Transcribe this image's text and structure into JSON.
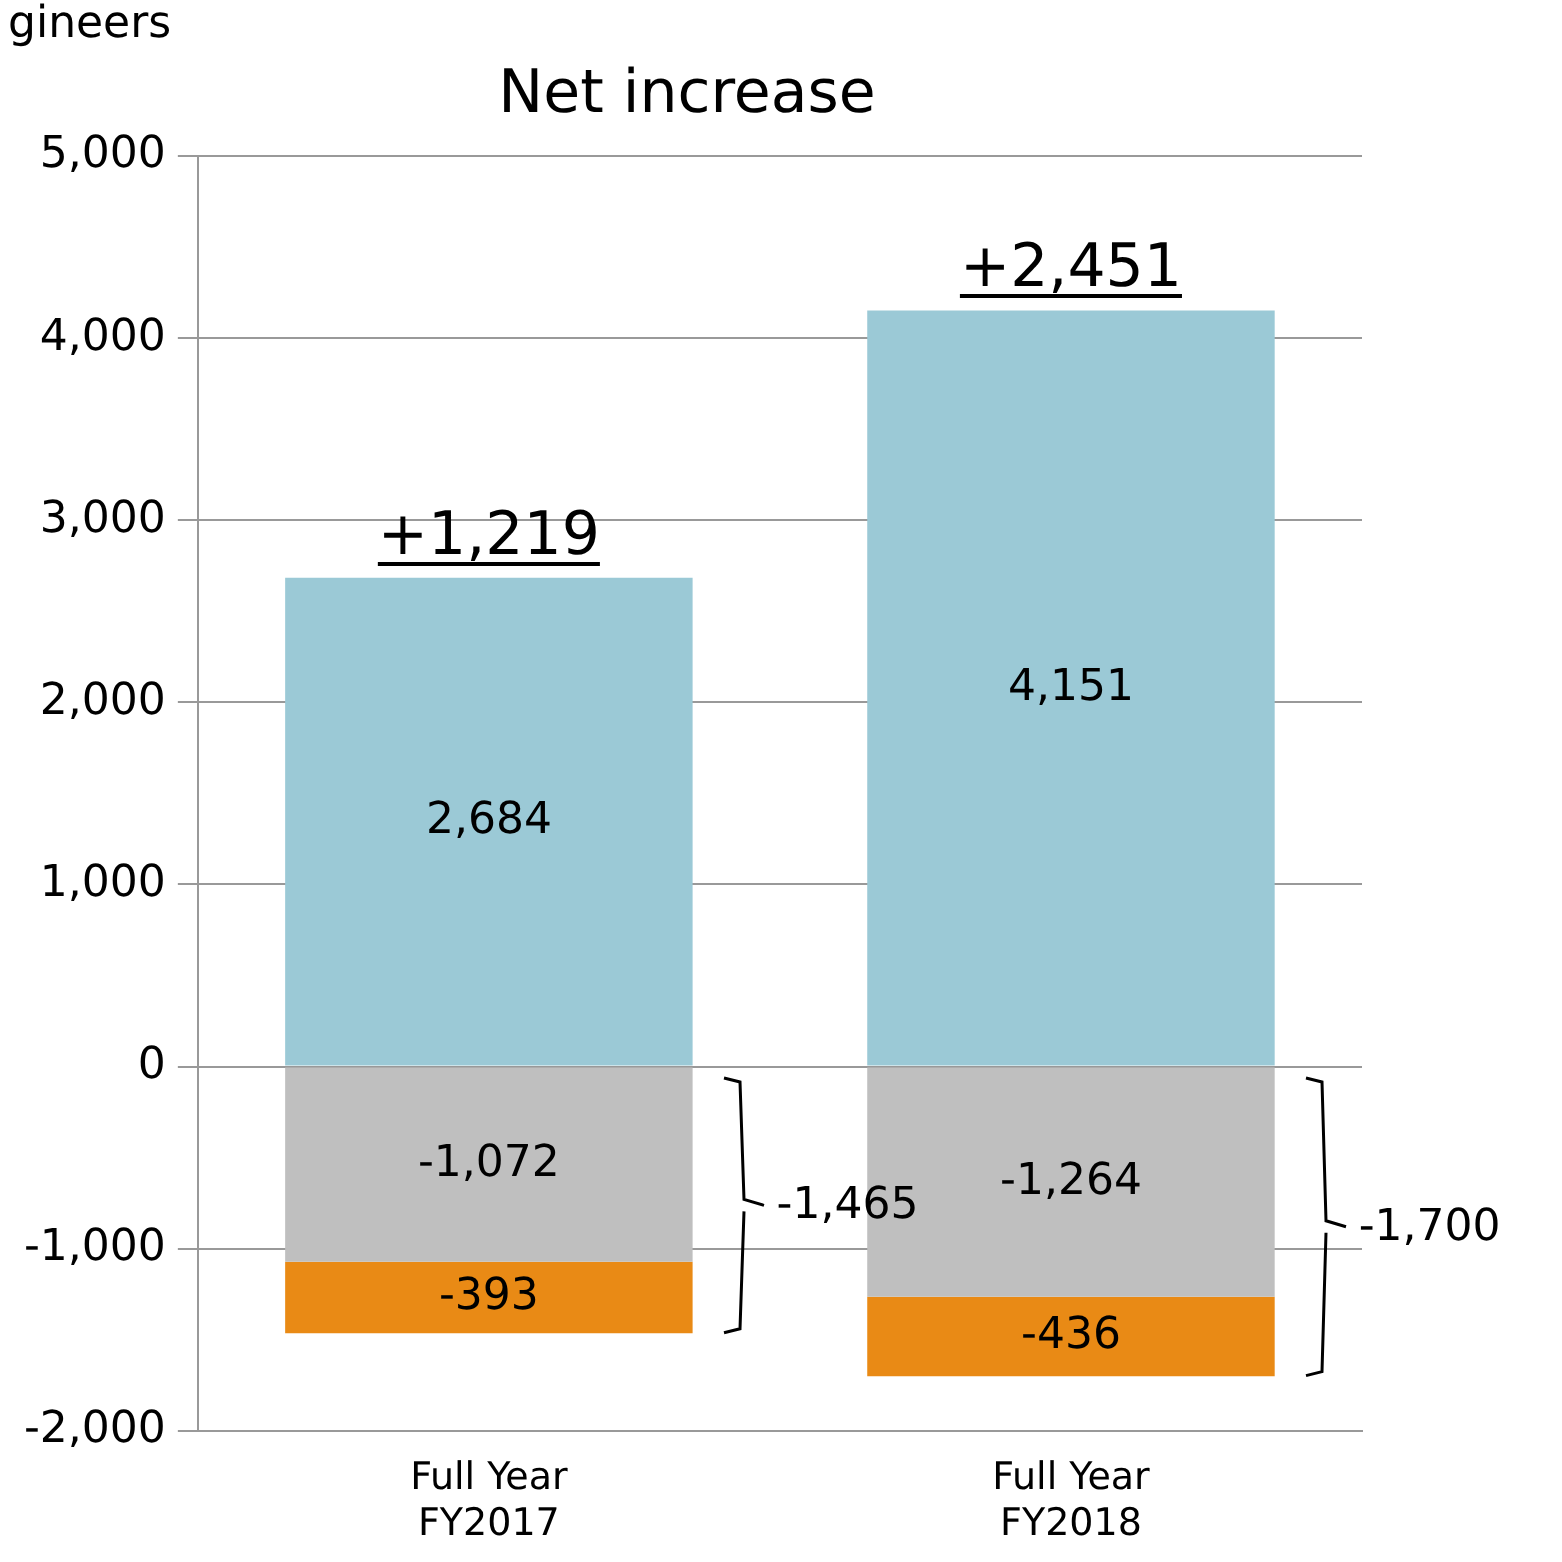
{
  "chart_data": {
    "type": "bar",
    "title": "Net increase",
    "ylabel": "gineers",
    "stacked": true,
    "grid": "y",
    "legend": false,
    "categories": [
      "Full Year\nFY2017",
      "Full Year\nFY2018"
    ],
    "series": [
      {
        "color": "#9bc9d6",
        "values": [
          2684,
          4151
        ],
        "value_labels": [
          "2,684",
          "4,151"
        ]
      },
      {
        "color": "#bfbfbf",
        "values": [
          -1072,
          -1264
        ],
        "value_labels": [
          "-1,072",
          "-1,264"
        ]
      },
      {
        "color": "#e98a15",
        "values": [
          -393,
          -436
        ],
        "value_labels": [
          "-393",
          "-436"
        ]
      }
    ],
    "ylim": [
      -2000,
      5000
    ],
    "yticks": [
      {
        "value": -2000,
        "label": "-2,000"
      },
      {
        "value": -1000,
        "label": "-1,000"
      },
      0,
      {
        "value": 1000,
        "label": "1,000"
      },
      {
        "value": 2000,
        "label": "2,000"
      },
      {
        "value": 3000,
        "label": "3,000"
      },
      {
        "value": 4000,
        "label": "4,000"
      },
      {
        "value": 5000,
        "label": "5,000"
      }
    ],
    "annotations": [
      {
        "text": "+1,219",
        "x": "Full Year\nFY2017",
        "y": 2684
      },
      {
        "text": "+2,451",
        "x": "Full Year\nFY2018",
        "y": 4151
      },
      "-1,465",
      "-1,700"
    ]
  }
}
